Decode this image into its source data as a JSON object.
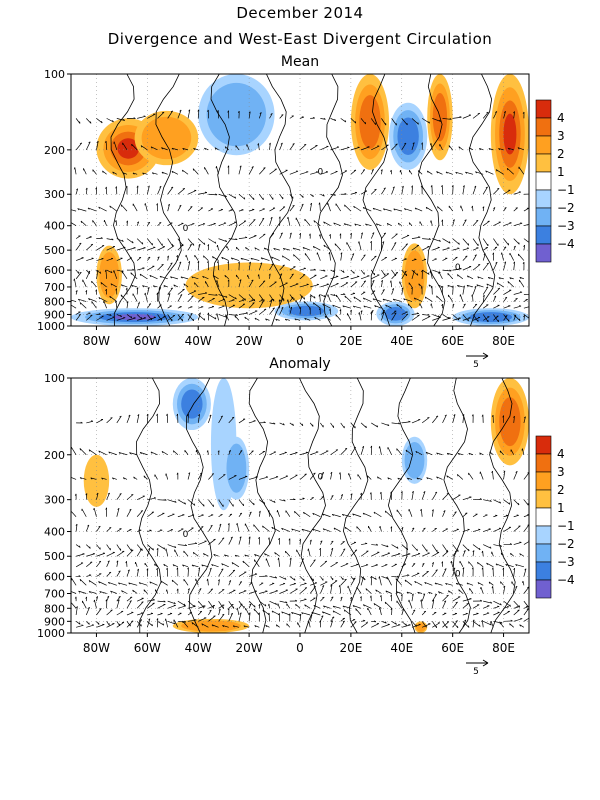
{
  "header": {
    "title_line1": "December 2014",
    "title_line2": "Divergence and West-East Divergent Circulation"
  },
  "colors": {
    "pos1": "#ffc040",
    "pos2": "#ffa020",
    "pos3": "#f07010",
    "pos4": "#d82c0c",
    "neg1": "#a8d4ff",
    "neg2": "#70b2f4",
    "neg3": "#3c80e0",
    "neg4": "#7060d0"
  },
  "chart_data": [
    {
      "type": "heatmap",
      "title": "Mean",
      "x_ticks": [
        "80W",
        "60W",
        "40W",
        "20W",
        "0",
        "20E",
        "40E",
        "60E",
        "80E"
      ],
      "y_ticks": [
        "100",
        "200",
        "300",
        "400",
        "500",
        "600",
        "700",
        "800",
        "900",
        "1000"
      ],
      "xlim": [
        -90,
        90
      ],
      "ylim": [
        1000,
        100
      ],
      "y_scale": "log",
      "legend": {
        "levels": [
          "4",
          "3",
          "2",
          "1",
          "-1",
          "-2",
          "-3",
          "-4"
        ],
        "placement": "right"
      },
      "vector_reference": "5",
      "contour_label": "0",
      "shaded_features": [
        {
          "sign": "pos",
          "level": 4,
          "lon": [
            -80,
            -55
          ],
          "p": [
            150,
            260
          ]
        },
        {
          "sign": "pos",
          "level": 2,
          "lon": [
            -65,
            -40
          ],
          "p": [
            140,
            230
          ]
        },
        {
          "sign": "pos",
          "level": 2,
          "lon": [
            -80,
            -70
          ],
          "p": [
            480,
            820
          ]
        },
        {
          "sign": "pos",
          "level": 1,
          "lon": [
            -45,
            5
          ],
          "p": [
            560,
            850
          ]
        },
        {
          "sign": "neg",
          "level": 2,
          "lon": [
            -40,
            -10
          ],
          "p": [
            100,
            210
          ]
        },
        {
          "sign": "pos",
          "level": 3,
          "lon": [
            20,
            35
          ],
          "p": [
            100,
            240
          ]
        },
        {
          "sign": "neg",
          "level": 3,
          "lon": [
            35,
            50
          ],
          "p": [
            130,
            240
          ]
        },
        {
          "sign": "pos",
          "level": 3,
          "lon": [
            50,
            60
          ],
          "p": [
            100,
            220
          ]
        },
        {
          "sign": "pos",
          "level": 2,
          "lon": [
            40,
            50
          ],
          "p": [
            470,
            850
          ]
        },
        {
          "sign": "pos",
          "level": 4,
          "lon": [
            75,
            90
          ],
          "p": [
            100,
            300
          ]
        },
        {
          "sign": "neg",
          "level": 4,
          "lon": [
            -90,
            -40
          ],
          "p": [
            850,
            1000
          ]
        },
        {
          "sign": "neg",
          "level": 3,
          "lon": [
            -10,
            15
          ],
          "p": [
            800,
            950
          ]
        },
        {
          "sign": "neg",
          "level": 3,
          "lon": [
            30,
            45
          ],
          "p": [
            800,
            1000
          ]
        },
        {
          "sign": "neg",
          "level": 3,
          "lon": [
            60,
            90
          ],
          "p": [
            850,
            1000
          ]
        }
      ]
    },
    {
      "type": "heatmap",
      "title": "Anomaly",
      "x_ticks": [
        "80W",
        "60W",
        "40W",
        "20W",
        "0",
        "20E",
        "40E",
        "60E",
        "80E"
      ],
      "y_ticks": [
        "100",
        "200",
        "300",
        "400",
        "500",
        "600",
        "700",
        "800",
        "900",
        "1000"
      ],
      "xlim": [
        -90,
        90
      ],
      "ylim": [
        1000,
        100
      ],
      "y_scale": "log",
      "legend": {
        "levels": [
          "4",
          "3",
          "2",
          "1",
          "-1",
          "-2",
          "-3",
          "-4"
        ],
        "placement": "right"
      },
      "vector_reference": "5",
      "contour_label": "0",
      "shaded_features": [
        {
          "sign": "neg",
          "level": 3,
          "lon": [
            -50,
            -35
          ],
          "p": [
            100,
            160
          ]
        },
        {
          "sign": "neg",
          "level": 1,
          "lon": [
            -35,
            -25
          ],
          "p": [
            100,
            330
          ]
        },
        {
          "sign": "pos",
          "level": 1,
          "lon": [
            -85,
            -75
          ],
          "p": [
            200,
            320
          ]
        },
        {
          "sign": "neg",
          "level": 2,
          "lon": [
            -30,
            -20
          ],
          "p": [
            170,
            300
          ]
        },
        {
          "sign": "neg",
          "level": 2,
          "lon": [
            40,
            50
          ],
          "p": [
            170,
            260
          ]
        },
        {
          "sign": "pos",
          "level": 3,
          "lon": [
            75,
            90
          ],
          "p": [
            100,
            220
          ]
        },
        {
          "sign": "pos",
          "level": 2,
          "lon": [
            -50,
            -20
          ],
          "p": [
            880,
            1000
          ]
        },
        {
          "sign": "pos",
          "level": 2,
          "lon": [
            45,
            50
          ],
          "p": [
            900,
            1000
          ]
        }
      ]
    }
  ]
}
